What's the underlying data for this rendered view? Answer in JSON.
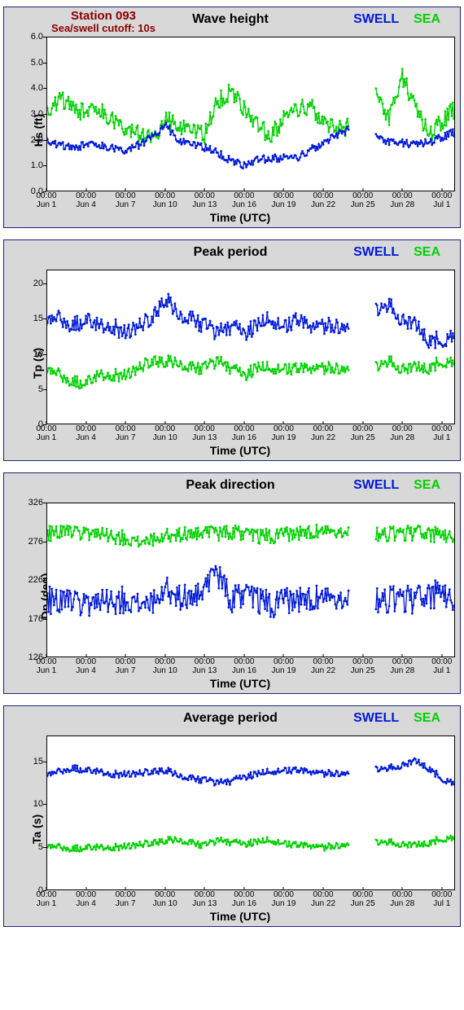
{
  "colors": {
    "panel_bg": "#d8d8d8",
    "panel_border": "#1a237e",
    "plot_bg": "#ffffff",
    "axis": "#000000",
    "swell": "#0018d8",
    "sea": "#00d000",
    "station_text": "#8b0000"
  },
  "station": "Station 093",
  "cutoff": "Sea/swell cutoff: 10s",
  "legend": {
    "swell": "SWELL",
    "sea": "SEA"
  },
  "x": {
    "label": "Time (UTC)",
    "min": 0,
    "max": 31,
    "ticks": [
      {
        "v": 0,
        "t": "00:00",
        "b": "Jun 1"
      },
      {
        "v": 3,
        "t": "00:00",
        "b": "Jun 4"
      },
      {
        "v": 6,
        "t": "00:00",
        "b": "Jun 7"
      },
      {
        "v": 9,
        "t": "00:00",
        "b": "Jun 10"
      },
      {
        "v": 12,
        "t": "00:00",
        "b": "Jun 13"
      },
      {
        "v": 15,
        "t": "00:00",
        "b": "Jun 16"
      },
      {
        "v": 18,
        "t": "00:00",
        "b": "Jun 19"
      },
      {
        "v": 21,
        "t": "00:00",
        "b": "Jun 22"
      },
      {
        "v": 24,
        "t": "00:00",
        "b": "Jun 25"
      },
      {
        "v": 27,
        "t": "00:00",
        "b": "Jun 28"
      },
      {
        "v": 30,
        "t": "00:00",
        "b": "Jul 1"
      }
    ],
    "gap": [
      23.6,
      24.6
    ]
  },
  "panels": [
    {
      "id": "hs",
      "title": "Wave height",
      "ylabel": "Hs (ft)",
      "ylim": [
        0.0,
        6.0
      ],
      "yticks": [
        0.0,
        1.0,
        2.0,
        3.0,
        4.0,
        5.0,
        6.0
      ],
      "ytick_fmt": 1,
      "show_station": true,
      "series": {
        "sea": [
          3.1,
          3.6,
          3.3,
          3.0,
          3.2,
          2.8,
          2.5,
          2.2,
          2.0,
          2.8,
          2.6,
          2.3,
          2.2,
          3.5,
          3.9,
          3.2,
          2.5,
          2.2,
          2.8,
          3.2,
          3.3,
          2.8,
          2.4,
          2.5,
          null,
          3.7,
          2.8,
          4.5,
          3.2,
          2.2,
          2.7,
          3.2
        ],
        "swell": [
          2.0,
          1.8,
          1.7,
          1.8,
          1.8,
          1.7,
          1.6,
          1.8,
          2.1,
          2.6,
          2.0,
          1.8,
          1.7,
          1.5,
          1.2,
          1.0,
          1.2,
          1.3,
          1.3,
          1.3,
          1.6,
          1.9,
          2.2,
          2.4,
          null,
          2.1,
          1.9,
          1.9,
          1.8,
          1.9,
          2.1,
          2.3
        ],
        "sea_noise": 0.35,
        "swell_noise": 0.15
      }
    },
    {
      "id": "tp",
      "title": "Peak period",
      "ylabel": "Tp (s)",
      "ylim": [
        0,
        22
      ],
      "yticks": [
        0,
        5,
        10,
        15,
        20
      ],
      "ytick_fmt": 0,
      "series": {
        "swell": [
          15,
          15,
          14,
          15,
          14,
          14,
          13,
          14,
          15,
          18,
          16,
          15,
          14,
          13,
          14,
          13,
          14,
          15,
          14,
          15,
          14,
          14,
          14,
          14,
          null,
          16,
          17,
          15,
          14,
          12,
          12,
          13
        ],
        "sea": [
          8,
          7,
          6,
          6,
          7,
          7,
          7,
          8,
          9,
          9,
          9,
          8,
          8,
          9,
          8,
          7,
          8,
          8,
          8,
          8,
          8,
          8,
          8,
          8,
          null,
          8,
          9,
          8,
          8,
          8,
          9,
          9
        ],
        "swell_noise": 1.2,
        "sea_noise": 0.9
      }
    },
    {
      "id": "dp",
      "title": "Peak direction",
      "ylabel": "Dp (deg)",
      "ylim": [
        126,
        326
      ],
      "yticks": [
        126,
        176,
        226,
        276,
        326
      ],
      "ytick_fmt": 0,
      "series": {
        "sea": [
          285,
          288,
          286,
          285,
          284,
          282,
          280,
          275,
          280,
          283,
          285,
          284,
          285,
          286,
          288,
          284,
          282,
          283,
          284,
          286,
          288,
          287,
          286,
          285,
          null,
          284,
          285,
          286,
          287,
          285,
          284,
          283
        ],
        "swell": [
          200,
          198,
          195,
          192,
          195,
          198,
          200,
          196,
          200,
          215,
          205,
          200,
          210,
          235,
          200,
          205,
          200,
          195,
          198,
          200,
          202,
          200,
          198,
          196,
          null,
          198,
          200,
          202,
          200,
          205,
          210,
          200
        ],
        "sea_noise": 10,
        "swell_noise": 18
      }
    },
    {
      "id": "ta",
      "title": "Average period",
      "ylabel": "Ta (s)",
      "ylim": [
        0,
        18
      ],
      "yticks": [
        0,
        5,
        10,
        15
      ],
      "ytick_fmt": 0,
      "series": {
        "swell": [
          13.5,
          13.8,
          14.2,
          14.0,
          13.8,
          13.5,
          13.5,
          13.6,
          13.8,
          14.0,
          13.5,
          13.0,
          12.8,
          12.5,
          12.7,
          13.2,
          13.5,
          13.8,
          14.0,
          14.0,
          13.8,
          13.6,
          13.6,
          13.7,
          null,
          14.0,
          14.2,
          14.6,
          15.0,
          14.2,
          13.0,
          12.5
        ],
        "sea": [
          5.2,
          5.0,
          4.8,
          5.0,
          5.0,
          5.0,
          5.1,
          5.3,
          5.5,
          5.8,
          6.0,
          5.5,
          5.2,
          5.8,
          5.6,
          5.4,
          5.6,
          5.8,
          5.5,
          5.3,
          5.2,
          5.0,
          5.2,
          5.4,
          null,
          5.5,
          5.6,
          5.4,
          5.2,
          5.5,
          6.0,
          6.2
        ],
        "swell_noise": 0.4,
        "sea_noise": 0.4
      }
    }
  ],
  "style": {
    "line_width": 1.3,
    "marker_size": 1.4,
    "title_fontsize": 16,
    "axis_label_fontsize": 14,
    "tick_fontsize": 11,
    "points_per_day": 12
  }
}
